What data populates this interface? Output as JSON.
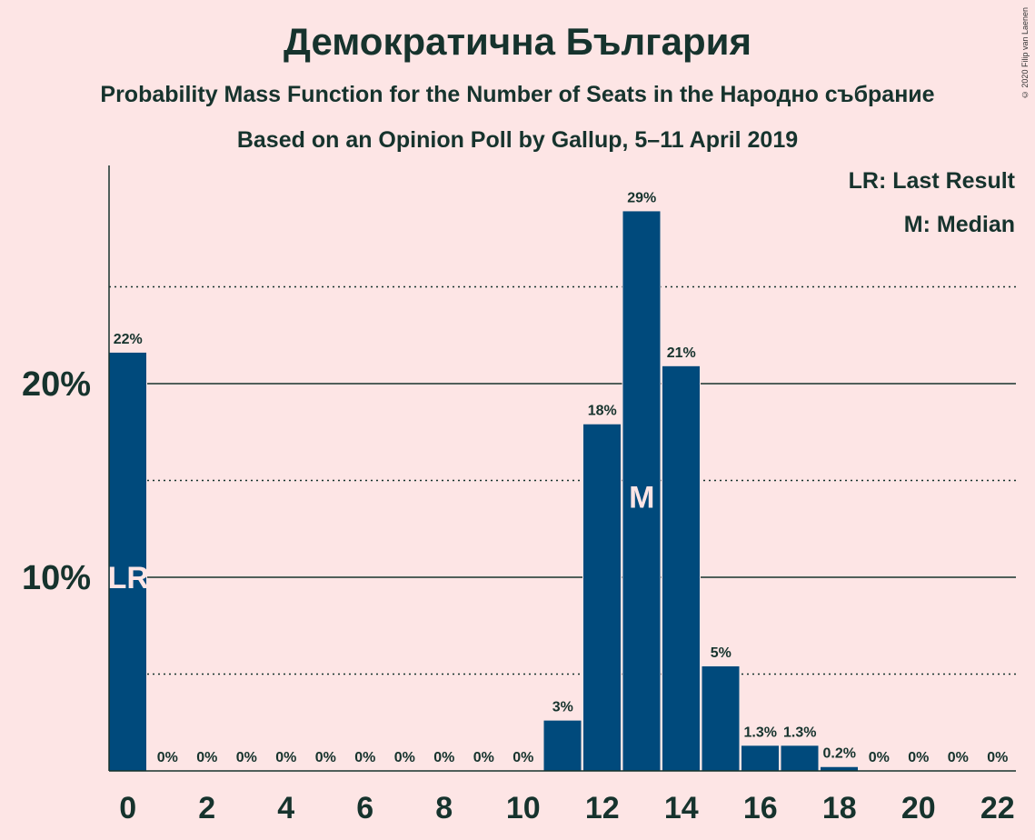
{
  "title": "Демократична България",
  "subtitle1": "Probability Mass Function for the Number of Seats in the Народно събрание",
  "subtitle2": "Based on an Opinion Poll by Gallup, 5–11 April 2019",
  "copyright": "© 2020 Filip van Laenen",
  "legend": {
    "last_result": "LR: Last Result",
    "median": "M: Median"
  },
  "colors": {
    "bar": "#004a7c",
    "background": "#fde5e5",
    "text": "#16332d"
  },
  "chart_data": {
    "type": "bar",
    "title": "Демократична България",
    "categories": [
      0,
      1,
      2,
      3,
      4,
      5,
      6,
      7,
      8,
      9,
      10,
      11,
      12,
      13,
      14,
      15,
      16,
      17,
      18,
      19,
      20,
      21,
      22
    ],
    "values": [
      21.6,
      0,
      0,
      0,
      0,
      0,
      0,
      0,
      0,
      0,
      0,
      2.6,
      17.9,
      28.9,
      20.9,
      5.4,
      1.3,
      1.3,
      0.2,
      0,
      0,
      0,
      0
    ],
    "data_labels": [
      "22%",
      "0%",
      "0%",
      "0%",
      "0%",
      "0%",
      "0%",
      "0%",
      "0%",
      "0%",
      "0%",
      "3%",
      "18%",
      "29%",
      "21%",
      "5%",
      "1.3%",
      "1.3%",
      "0.2%",
      "0%",
      "0%",
      "0%",
      "0%"
    ],
    "x_tick_labels": [
      "0",
      "2",
      "4",
      "6",
      "8",
      "10",
      "12",
      "14",
      "16",
      "18",
      "20",
      "22"
    ],
    "y_ticks": [
      10,
      20
    ],
    "y_tick_labels": [
      "10%",
      "20%"
    ],
    "y_minor_gridlines": [
      5,
      15,
      25
    ],
    "ylim": [
      0,
      31
    ],
    "last_result_seat": 0,
    "last_result_mark": "LR",
    "median_seat": 13,
    "median_mark": "M",
    "legend_position": "top-right"
  }
}
